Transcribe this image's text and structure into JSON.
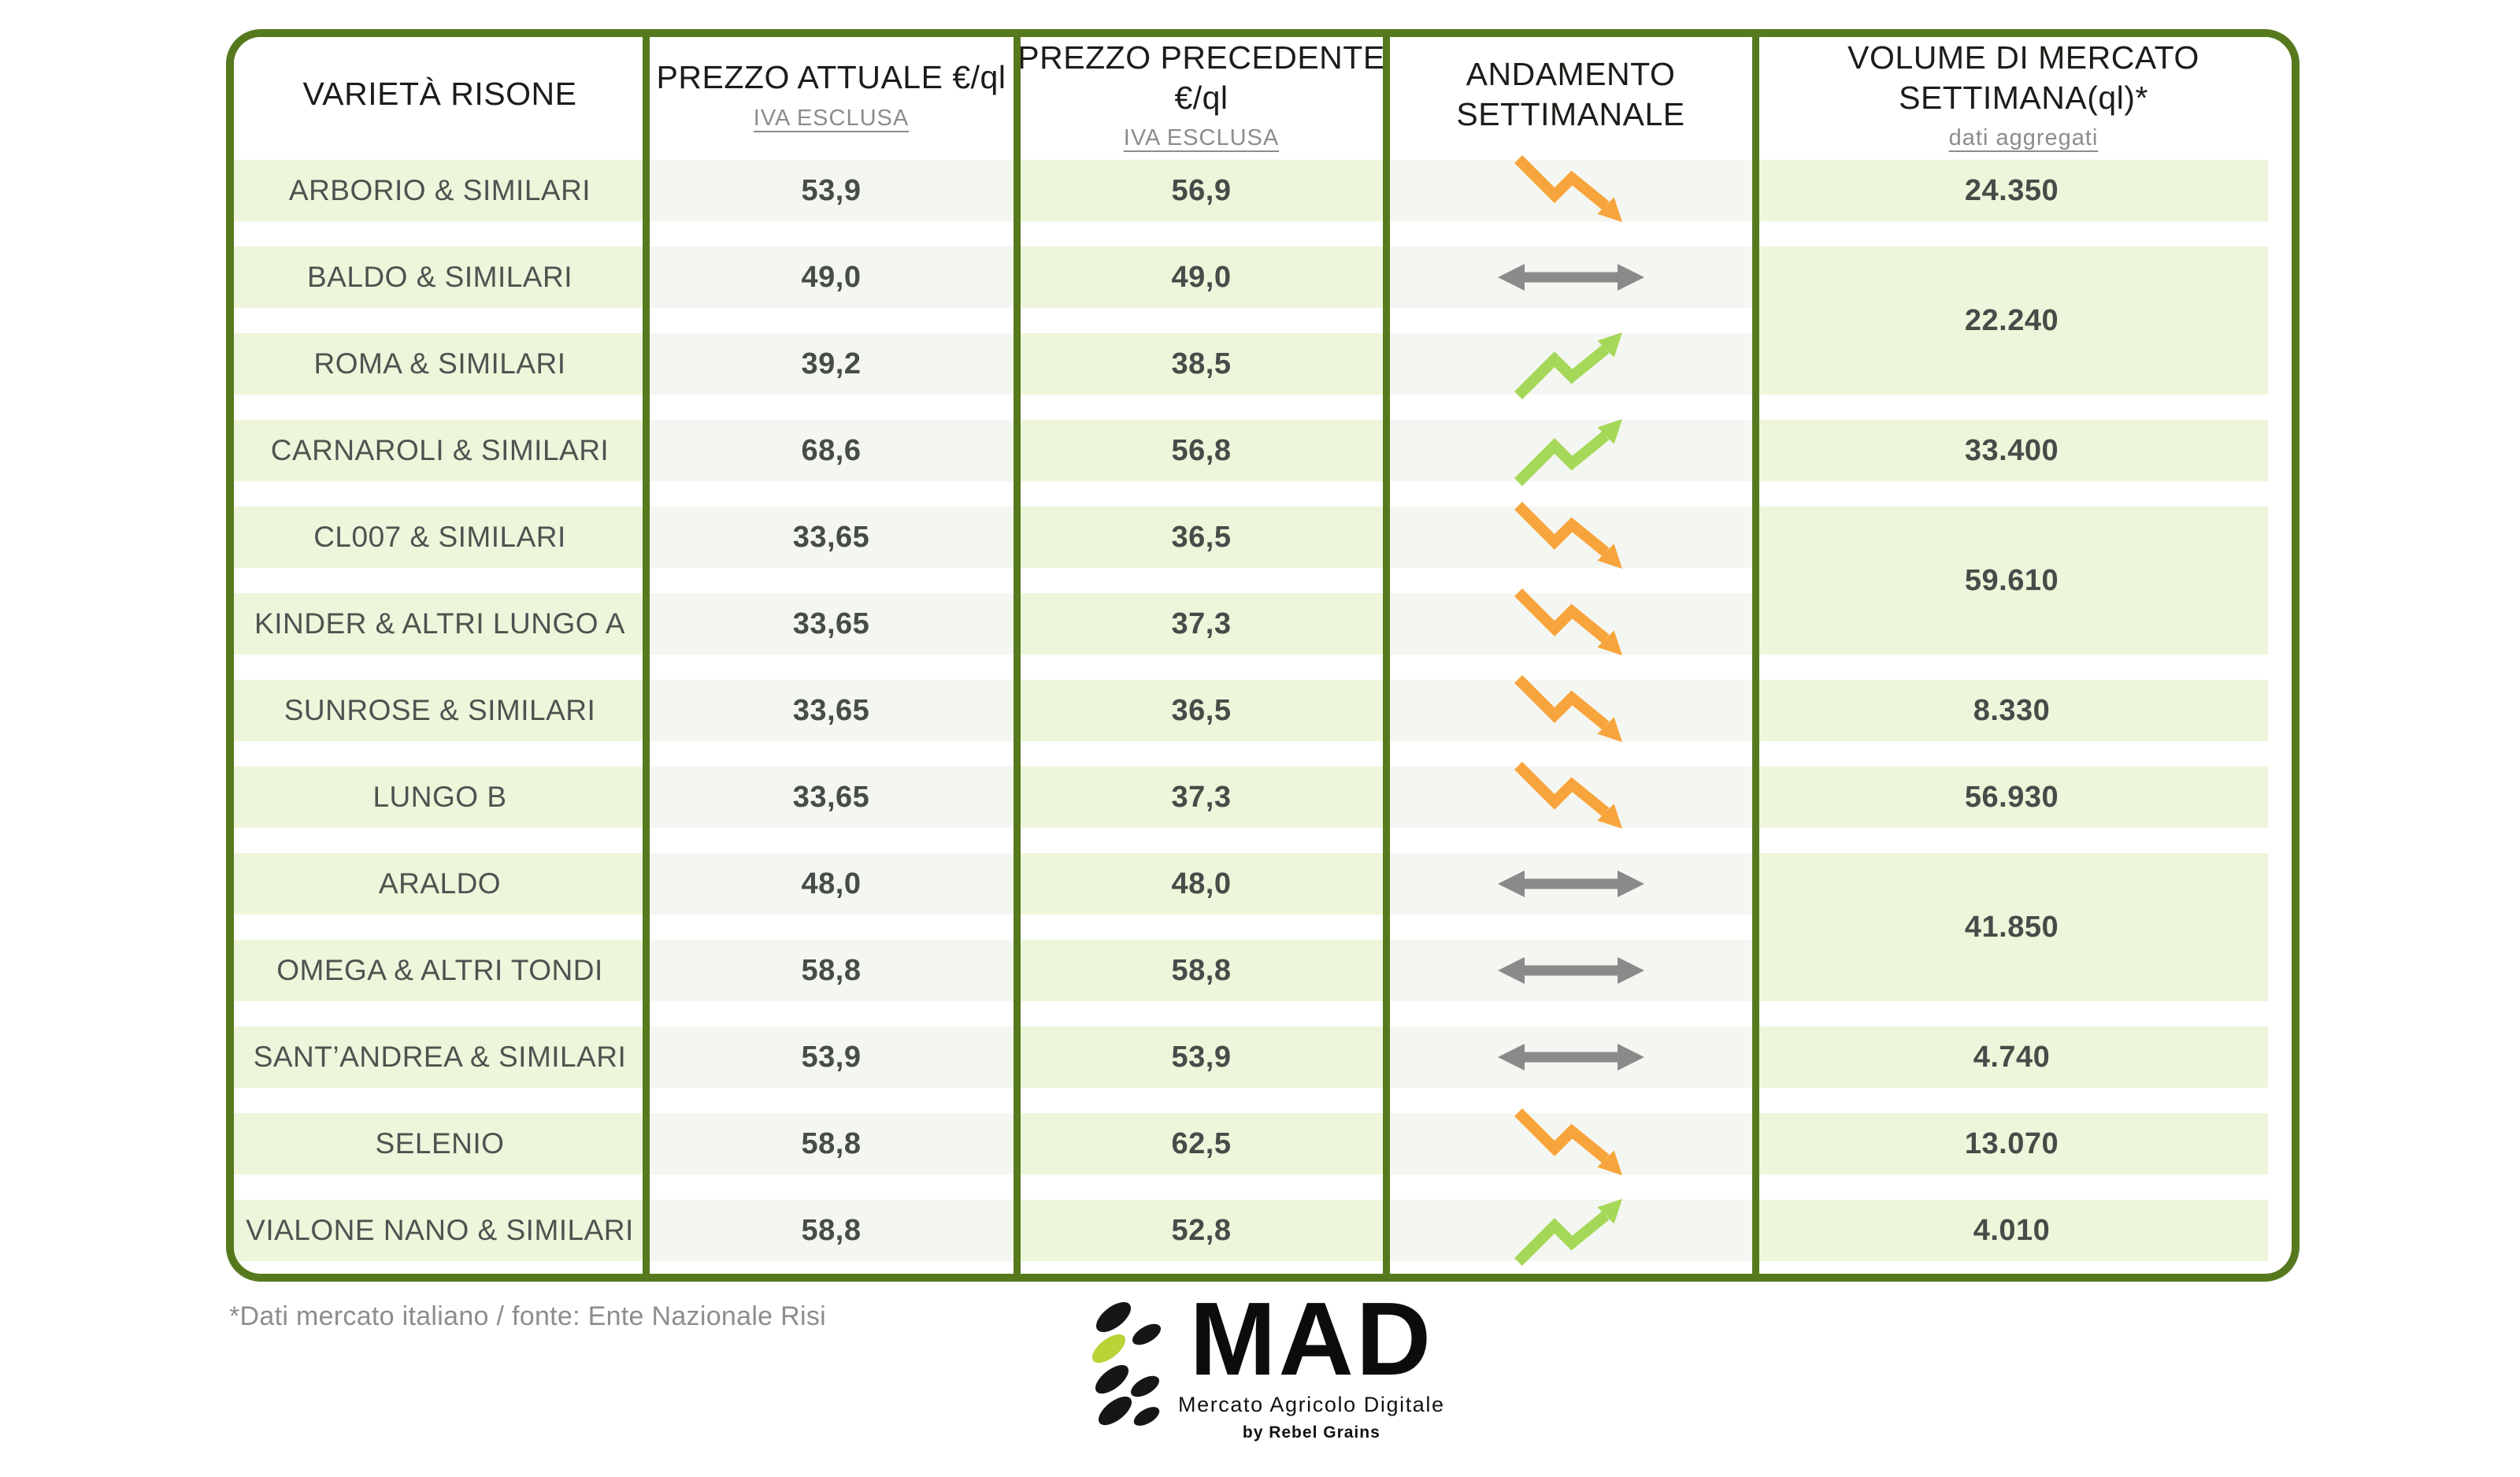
{
  "colors": {
    "table_border": "#56791e",
    "band_green": "#edf6da",
    "band_gray": "#f4f6f1",
    "trend_up": "#a5d858",
    "trend_down": "#f8a43c",
    "trend_flat": "#8a8a8a",
    "header_text": "#1c1d19",
    "muted_text": "#8c8c8c",
    "value_text": "#474c49",
    "logo_leaf_green": "#b8d437",
    "logo_leaf_black": "#161616"
  },
  "chart_data": {
    "type": "table",
    "title": "",
    "columns": [
      {
        "title": "VARIETÀ RISONE",
        "subtitle": ""
      },
      {
        "title": "PREZZO ATTUALE €/ql",
        "subtitle": "IVA ESCLUSA"
      },
      {
        "title": "PREZZO PRECEDENTE €/ql",
        "subtitle": "IVA ESCLUSA"
      },
      {
        "title": "ANDAMENTO SETTIMANALE",
        "subtitle": ""
      },
      {
        "title": "VOLUME DI MERCATO SETTIMANA(ql)*",
        "subtitle": "dati aggregati"
      }
    ],
    "rows": [
      {
        "variety": "ARBORIO & SIMILARI",
        "current": "53,9",
        "previous": "56,9",
        "trend": "down",
        "volume": "24.350",
        "volume_rowspan": 1
      },
      {
        "variety": "BALDO & SIMILARI",
        "current": "49,0",
        "previous": "49,0",
        "trend": "flat",
        "volume": "22.240",
        "volume_rowspan": 2
      },
      {
        "variety": "ROMA & SIMILARI",
        "current": "39,2",
        "previous": "38,5",
        "trend": "up",
        "volume": "",
        "volume_rowspan": 0
      },
      {
        "variety": "CARNAROLI & SIMILARI",
        "current": "68,6",
        "previous": "56,8",
        "trend": "up",
        "volume": "33.400",
        "volume_rowspan": 1
      },
      {
        "variety": "CL007 & SIMILARI",
        "current": "33,65",
        "previous": "36,5",
        "trend": "down",
        "volume": "59.610",
        "volume_rowspan": 2
      },
      {
        "variety": "KINDER & ALTRI LUNGO A",
        "current": "33,65",
        "previous": "37,3",
        "trend": "down",
        "volume": "",
        "volume_rowspan": 0
      },
      {
        "variety": "SUNROSE & SIMILARI",
        "current": "33,65",
        "previous": "36,5",
        "trend": "down",
        "volume": "8.330",
        "volume_rowspan": 1
      },
      {
        "variety": "LUNGO B",
        "current": "33,65",
        "previous": "37,3",
        "trend": "down",
        "volume": "56.930",
        "volume_rowspan": 1
      },
      {
        "variety": "ARALDO",
        "current": "48,0",
        "previous": "48,0",
        "trend": "flat",
        "volume": "41.850",
        "volume_rowspan": 2
      },
      {
        "variety": "OMEGA & ALTRI TONDI",
        "current": "58,8",
        "previous": "58,8",
        "trend": "flat",
        "volume": "",
        "volume_rowspan": 0
      },
      {
        "variety": "SANT’ANDREA & SIMILARI",
        "current": "53,9",
        "previous": "53,9",
        "trend": "flat",
        "volume": "4.740",
        "volume_rowspan": 1
      },
      {
        "variety": "SELENIO",
        "current": "58,8",
        "previous": "62,5",
        "trend": "down",
        "volume": "13.070",
        "volume_rowspan": 1
      },
      {
        "variety": "VIALONE NANO & SIMILARI",
        "current": "58,8",
        "previous": "52,8",
        "trend": "up",
        "volume": "4.010",
        "volume_rowspan": 1
      }
    ]
  },
  "footnote": "*Dati mercato italiano / fonte: Ente Nazionale Risi",
  "logo": {
    "name": "MAD",
    "subtitle": "Mercato Agricolo Digitale",
    "byline": "by Rebel Grains"
  }
}
